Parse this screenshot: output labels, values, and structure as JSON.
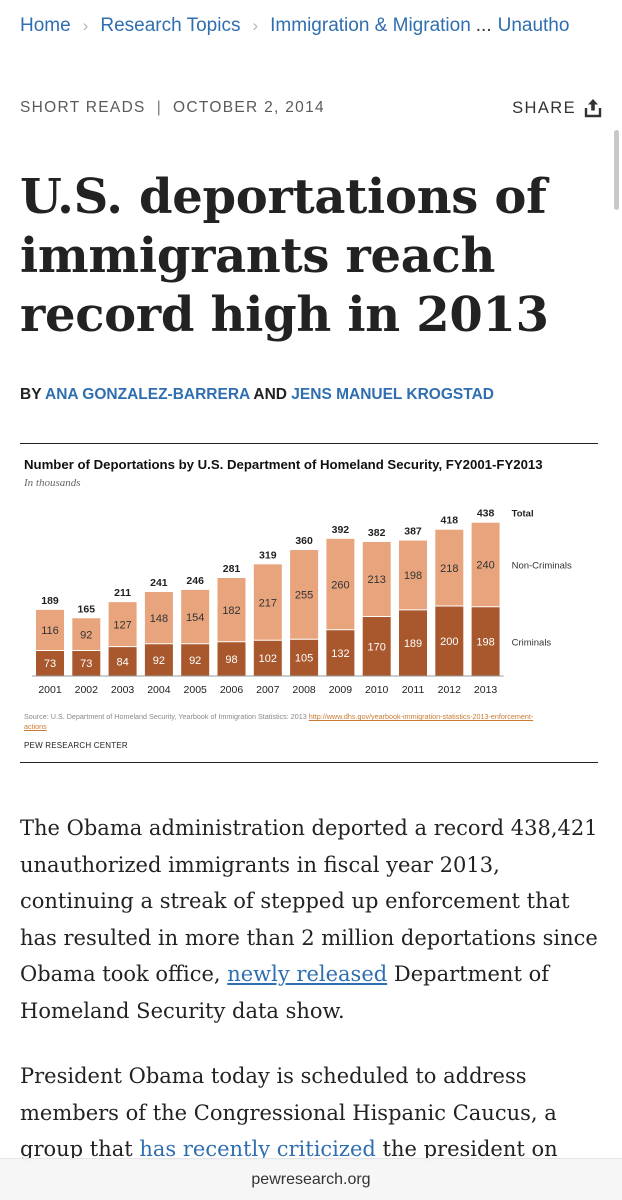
{
  "breadcrumb": {
    "home": "Home",
    "topic": "Research Topics",
    "sub": "Immigration & Migration",
    "ellipsis": "...",
    "current": "Unautho"
  },
  "meta": {
    "category": "SHORT READS",
    "date": "OCTOBER 2, 2014",
    "share_label": "SHARE",
    "share_icon": "share-icon"
  },
  "headline": "U.S. deportations of immigrants reach record high in 2013",
  "byline": {
    "by": "BY",
    "author1": "ANA GONZALEZ-BARRERA",
    "and": "AND",
    "author2": "JENS MANUEL KROGSTAD"
  },
  "chart_data": {
    "type": "bar",
    "title": "Number of Deportations by U.S. Department of Homeland Security, FY2001-FY2013",
    "subtitle": "In thousands",
    "categories": [
      "2001",
      "2002",
      "2003",
      "2004",
      "2005",
      "2006",
      "2007",
      "2008",
      "2009",
      "2010",
      "2011",
      "2012",
      "2013"
    ],
    "series": [
      {
        "name": "Criminals",
        "values": [
          73,
          73,
          84,
          92,
          92,
          98,
          102,
          105,
          132,
          170,
          189,
          200,
          198
        ]
      },
      {
        "name": "Non-Criminals",
        "values": [
          116,
          92,
          127,
          148,
          154,
          182,
          217,
          255,
          260,
          213,
          198,
          218,
          240
        ]
      }
    ],
    "totals": [
      189,
      165,
      211,
      241,
      246,
      281,
      319,
      360,
      392,
      382,
      387,
      418,
      438
    ],
    "total_label": "Total",
    "stacked": true,
    "colors": {
      "criminals": "#a8582c",
      "non_criminals": "#e8a57d"
    },
    "source_prefix": "Source: U.S. Department of Homeland Security, Yearbook of Immigration Statistics: 2013 ",
    "source_link": "http://www.dhs.gov/yearbook-immigration-statistics-2013-enforcement-actions",
    "org": "PEW RESEARCH CENTER"
  },
  "body": {
    "p1_a": "The Obama administration deported a record 438,421 unauthorized immigrants in fiscal year 2013, continuing a streak of stepped up enforcement that has resulted in more than 2 million deportations since Obama took office, ",
    "p1_link": "newly released",
    "p1_b": " Department of Homeland Security data show.",
    "p2_a": "President Obama today is scheduled to address members of the Congressional Hispanic Caucus, a group that ",
    "p2_link": "has recently criticized",
    "p2_b": " the president on"
  },
  "footer": {
    "domain": "pewresearch.org"
  },
  "colors": {
    "link": "#2f6eb0",
    "text": "#222222"
  }
}
